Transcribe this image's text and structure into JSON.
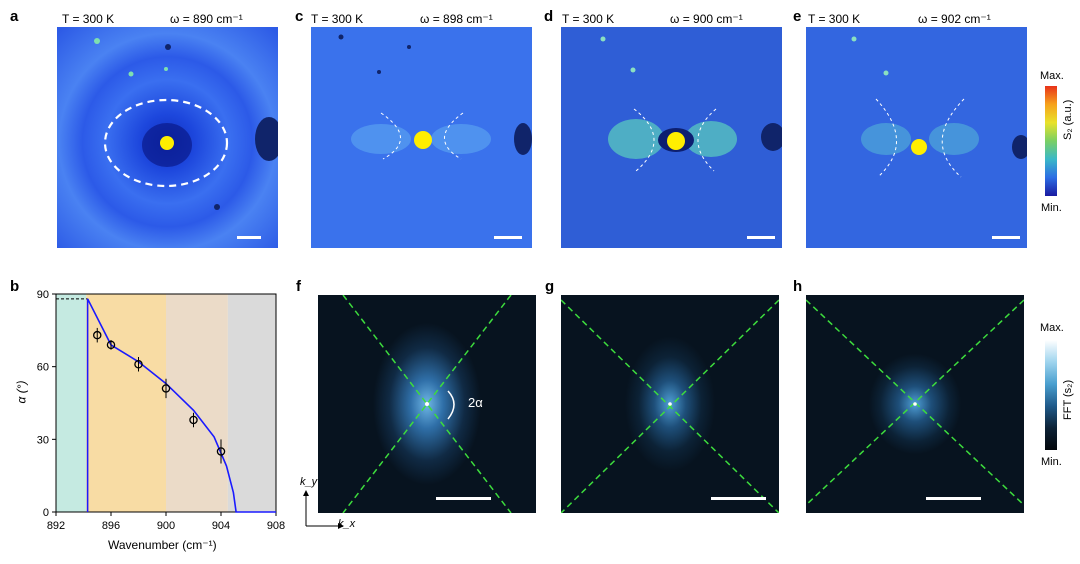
{
  "panels": [
    {
      "id": "a",
      "label": "a",
      "temp": "T = 300 K",
      "freq": "ω = 890 cm⁻¹"
    },
    {
      "id": "c",
      "label": "c",
      "temp": "T = 300 K",
      "freq": "ω = 898 cm⁻¹"
    },
    {
      "id": "d",
      "label": "d",
      "temp": "T = 300 K",
      "freq": "ω = 900 cm⁻¹"
    },
    {
      "id": "e",
      "label": "e",
      "temp": "T = 300 K",
      "freq": "ω = 902 cm⁻¹"
    }
  ],
  "colorbar_top": {
    "max": "Max.",
    "min": "Min.",
    "label": "S₂ (a.u.)"
  },
  "colorbar_bottom": {
    "max": "Max.",
    "min": "Min.",
    "label": "FFT (s₂)"
  },
  "fft_panels": [
    {
      "id": "f",
      "label": "f",
      "annotation": "2α"
    },
    {
      "id": "g",
      "label": "g"
    },
    {
      "id": "h",
      "label": "h"
    }
  ],
  "axes_k": {
    "ky": "k_y",
    "kx": "k_x"
  },
  "chart_data": {
    "type": "scatter",
    "label": "b",
    "xlabel": "Wavenumber (cm⁻¹)",
    "ylabel": "α (°)",
    "xlim": [
      892,
      908
    ],
    "ylim": [
      0,
      90
    ],
    "xticks": [
      892,
      896,
      900,
      904,
      908
    ],
    "yticks": [
      0,
      30,
      60,
      90
    ],
    "series": [
      {
        "type": "scatter",
        "x": [
          895,
          896,
          898,
          900,
          902,
          904
        ],
        "y": [
          73,
          69,
          61,
          51,
          38,
          25
        ],
        "err": [
          3,
          2,
          3,
          4,
          3,
          5
        ]
      },
      {
        "type": "line",
        "x": [
          894.3,
          894.3,
          896,
          898,
          900,
          902,
          903.5,
          904.4,
          904.9,
          905.1,
          908
        ],
        "y": [
          0,
          88,
          69,
          62,
          53,
          42,
          31,
          19,
          8,
          0,
          0
        ]
      }
    ],
    "reference_value": 88,
    "regions": [
      {
        "from": 892,
        "to": 894.2,
        "color": "#bfe8de"
      },
      {
        "from": 894.2,
        "to": 900,
        "color": "#f7d89a"
      },
      {
        "from": 900,
        "to": 904.5,
        "color": "#e9d7c2"
      },
      {
        "from": 904.5,
        "to": 908,
        "color": "#d6d6d6"
      }
    ]
  }
}
